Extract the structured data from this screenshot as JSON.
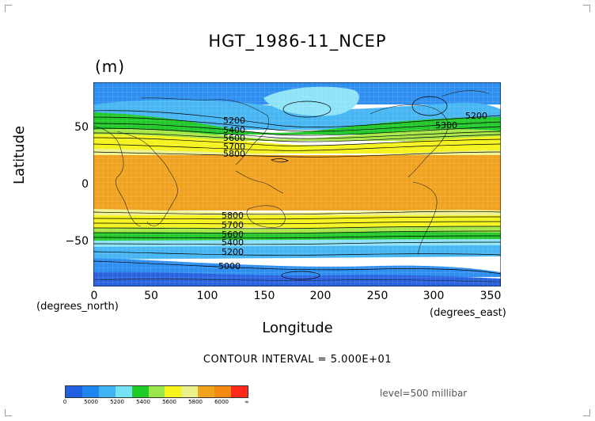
{
  "title": "HGT_1986-11_NCEP",
  "units": "(m)",
  "axes": {
    "ylabel": "Latitude",
    "xlabel": "Longitude",
    "yunit": "(degrees_north)",
    "xunit": "(degrees_east)",
    "yticks": [
      "50",
      "0",
      "−50"
    ],
    "xticks": [
      "0",
      "50",
      "100",
      "150",
      "200",
      "250",
      "300",
      "350"
    ]
  },
  "contour_labels": [
    "5200",
    "5300",
    "5400",
    "5500",
    "5600",
    "5700",
    "5800",
    "5000"
  ],
  "contour_interval": "CONTOUR INTERVAL = 5.000E+01",
  "level": "level=500 millibar",
  "colorbar": {
    "labels": [
      "0",
      "5000",
      "5200",
      "5400",
      "5600",
      "5800",
      "6000",
      "∞"
    ],
    "colors": [
      "#1f5fe0",
      "#1f86f0",
      "#3fb4f2",
      "#76e3f5",
      "#1ecb27",
      "#9be64a",
      "#f5f51c",
      "#e9f08a",
      "#f0a41e",
      "#f58a12",
      "#ff2a1c"
    ]
  },
  "map": {
    "lon_range": [
      0,
      360
    ],
    "lat_range": [
      -90,
      90
    ],
    "band_colors": {
      "deep_blue": "#2a63df",
      "blue": "#2f8ff0",
      "light_blue": "#47b6f3",
      "cyan": "#8ee3f6",
      "green": "#23c92b",
      "lime": "#a6e647",
      "yellow": "#f5f31d",
      "pale_yellow": "#eef290",
      "orange": "#f0a320"
    }
  }
}
